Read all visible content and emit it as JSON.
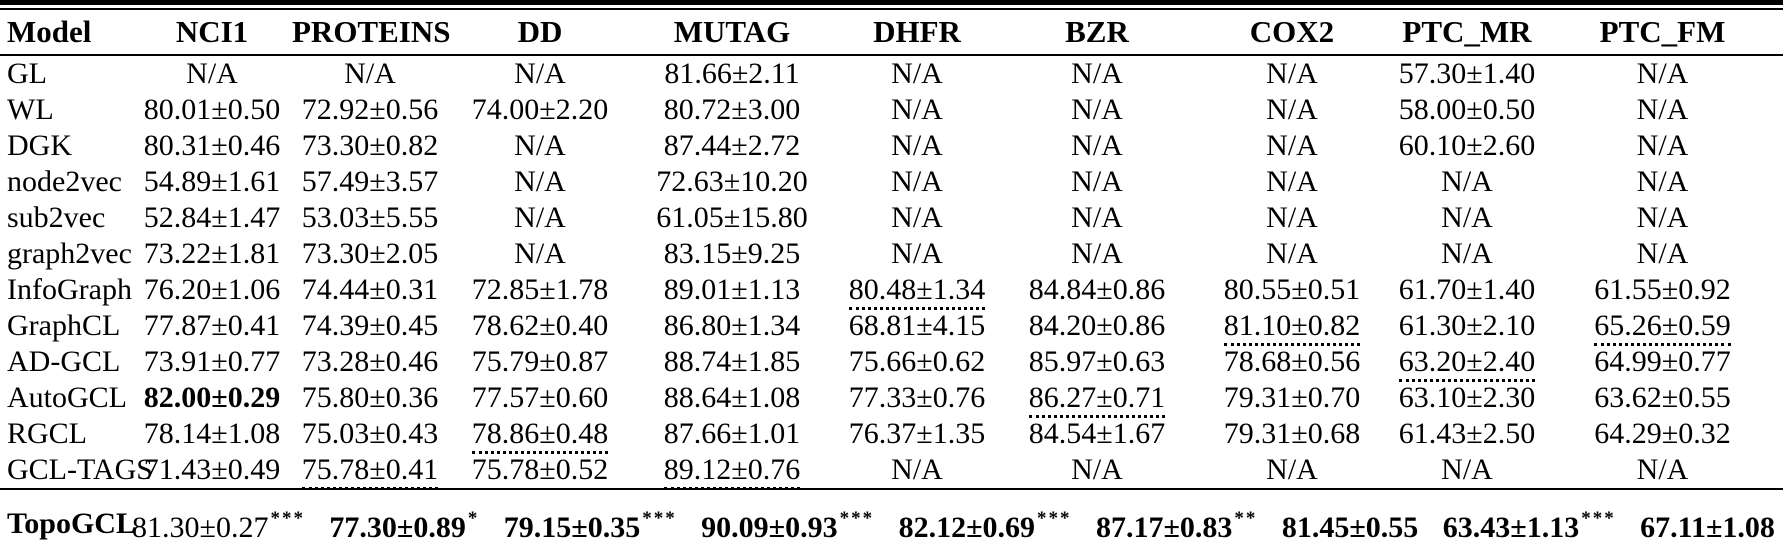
{
  "page": {
    "background": "#ffffff",
    "text_color": "#000000"
  },
  "table": {
    "columns": [
      {
        "key": "model",
        "label": "Model"
      },
      {
        "key": "nci1",
        "label": "NCI1"
      },
      {
        "key": "proteins",
        "label": "PROTEINS"
      },
      {
        "key": "dd",
        "label": "DD"
      },
      {
        "key": "mutag",
        "label": "MUTAG"
      },
      {
        "key": "dhfr",
        "label": "DHFR"
      },
      {
        "key": "bzr",
        "label": "BZR"
      },
      {
        "key": "cox2",
        "label": "COX2"
      },
      {
        "key": "ptc_mr",
        "label": "PTC_MR"
      },
      {
        "key": "ptc_fm",
        "label": "PTC_FM"
      }
    ],
    "rows": [
      {
        "model": "GL",
        "cells": [
          "N/A",
          "N/A",
          "N/A",
          "81.66±2.11",
          "N/A",
          "N/A",
          "N/A",
          "57.30±1.40",
          "N/A"
        ]
      },
      {
        "model": "WL",
        "cells": [
          "80.01±0.50",
          "72.92±0.56",
          "74.00±2.20",
          "80.72±3.00",
          "N/A",
          "N/A",
          "N/A",
          "58.00±0.50",
          "N/A"
        ]
      },
      {
        "model": "DGK",
        "cells": [
          "80.31±0.46",
          "73.30±0.82",
          "N/A",
          "87.44±2.72",
          "N/A",
          "N/A",
          "N/A",
          "60.10±2.60",
          "N/A"
        ]
      },
      {
        "model": "node2vec",
        "cells": [
          "54.89±1.61",
          "57.49±3.57",
          "N/A",
          "72.63±10.20",
          "N/A",
          "N/A",
          "N/A",
          "N/A",
          "N/A"
        ]
      },
      {
        "model": "sub2vec",
        "cells": [
          "52.84±1.47",
          "53.03±5.55",
          "N/A",
          "61.05±15.80",
          "N/A",
          "N/A",
          "N/A",
          "N/A",
          "N/A"
        ]
      },
      {
        "model": "graph2vec",
        "cells": [
          "73.22±1.81",
          "73.30±2.05",
          "N/A",
          "83.15±9.25",
          "N/A",
          "N/A",
          "N/A",
          "N/A",
          "N/A"
        ]
      },
      {
        "model": "InfoGraph",
        "cells": [
          "76.20±1.06",
          "74.44±0.31",
          "72.85±1.78",
          "89.01±1.13",
          {
            "value": "80.48±1.34",
            "underline": true
          },
          "84.84±0.86",
          "80.55±0.51",
          "61.70±1.40",
          "61.55±0.92"
        ]
      },
      {
        "model": "GraphCL",
        "cells": [
          "77.87±0.41",
          "74.39±0.45",
          "78.62±0.40",
          "86.80±1.34",
          "68.81±4.15",
          "84.20±0.86",
          {
            "value": "81.10±0.82",
            "underline": true
          },
          "61.30±2.10",
          {
            "value": "65.26±0.59",
            "underline": true
          }
        ]
      },
      {
        "model": "AD-GCL",
        "cells": [
          "73.91±0.77",
          "73.28±0.46",
          "75.79±0.87",
          "88.74±1.85",
          "75.66±0.62",
          "85.97±0.63",
          "78.68±0.56",
          {
            "value": "63.20±2.40",
            "underline": true
          },
          "64.99±0.77"
        ]
      },
      {
        "model": "AutoGCL",
        "cells": [
          {
            "value": "82.00±0.29",
            "bold": true
          },
          "75.80±0.36",
          "77.57±0.60",
          "88.64±1.08",
          "77.33±0.76",
          {
            "value": "86.27±0.71",
            "underline": true
          },
          "79.31±0.70",
          "63.10±2.30",
          "63.62±0.55"
        ]
      },
      {
        "model": "RGCL",
        "cells": [
          "78.14±1.08",
          "75.03±0.43",
          {
            "value": "78.86±0.48",
            "underline": true
          },
          "87.66±1.01",
          "76.37±1.35",
          "84.54±1.67",
          "79.31±0.68",
          "61.43±2.50",
          "64.29±0.32"
        ]
      },
      {
        "model": "GCL-TAGS",
        "cells": [
          "71.43±0.49",
          {
            "value": "75.78±0.41",
            "underline": true
          },
          "75.78±0.52",
          {
            "value": "89.12±0.76",
            "underline": true
          },
          "N/A",
          "N/A",
          "N/A",
          "N/A",
          "N/A"
        ]
      }
    ],
    "final_row": {
      "model": "TopoGCL",
      "cells": [
        {
          "value": "81.30±0.27",
          "underline": true,
          "stars": "***"
        },
        {
          "value": "77.30±0.89",
          "bold": true,
          "stars": "*"
        },
        {
          "value": "79.15±0.35",
          "bold": true,
          "stars": "***"
        },
        {
          "value": "90.09±0.93",
          "bold": true,
          "stars": "***"
        },
        {
          "value": "82.12±0.69",
          "bold": true,
          "stars": "***"
        },
        {
          "value": "87.17±0.83",
          "bold": true,
          "stars": "**"
        },
        {
          "value": "81.45±0.55",
          "bold": true
        },
        {
          "value": "63.43±1.13",
          "bold": true,
          "stars": "***"
        },
        {
          "value": "67.11±1.08",
          "bold": true
        }
      ]
    }
  }
}
